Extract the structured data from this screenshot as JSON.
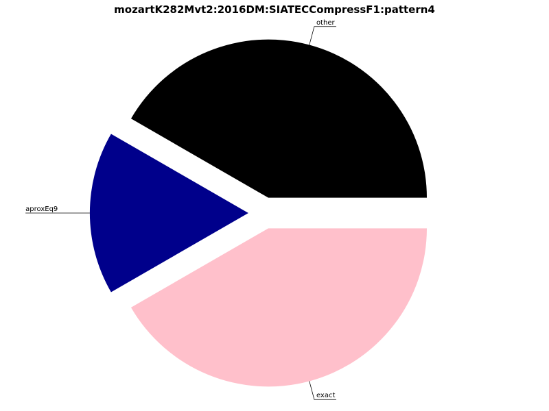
{
  "chart_data": {
    "type": "pie",
    "title": "mozartK282Mvt2:2016DM:SIATECCompress​F1:pattern4",
    "slices": [
      {
        "label": "other",
        "value": 41.67,
        "color": "#000000"
      },
      {
        "label": "aproxEq9",
        "value": 16.67,
        "color": "#00008b"
      },
      {
        "label": "exact",
        "value": 41.67,
        "color": "#ffc0cb"
      }
    ],
    "exploded": true,
    "start_angle_deg": 0,
    "direction": "counterclockwise",
    "legend": "none"
  }
}
